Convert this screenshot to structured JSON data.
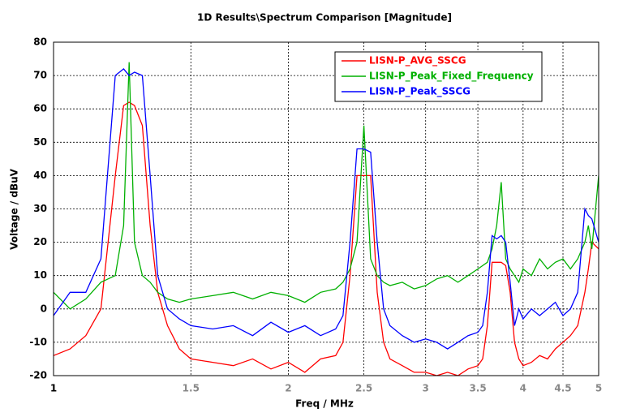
{
  "chart_data": {
    "type": "line",
    "title": "1D Results\\Spectrum Comparison [Magnitude]",
    "xlabel": "Freq / MHz",
    "ylabel": "Voltage / dBuV",
    "xscale": "log",
    "grid": true,
    "legend": "upper right",
    "xlim": [
      1,
      5
    ],
    "xticks": [
      1,
      1.5,
      2,
      2.5,
      3,
      3.5,
      4,
      4.5,
      5
    ],
    "ylim": [
      -20,
      80
    ],
    "yticks": [
      -20,
      -10,
      0,
      10,
      20,
      30,
      40,
      50,
      60,
      70,
      80
    ],
    "x": [
      1.0,
      1.05,
      1.1,
      1.15,
      1.2,
      1.23,
      1.25,
      1.27,
      1.3,
      1.33,
      1.36,
      1.4,
      1.45,
      1.5,
      1.6,
      1.7,
      1.8,
      1.9,
      2.0,
      2.1,
      2.2,
      2.3,
      2.35,
      2.4,
      2.45,
      2.5,
      2.55,
      2.6,
      2.65,
      2.7,
      2.8,
      2.9,
      3.0,
      3.1,
      3.2,
      3.3,
      3.4,
      3.5,
      3.55,
      3.6,
      3.65,
      3.7,
      3.75,
      3.8,
      3.85,
      3.9,
      3.95,
      4.0,
      4.1,
      4.2,
      4.3,
      4.4,
      4.5,
      4.6,
      4.7,
      4.8,
      4.85,
      4.9,
      5.0
    ],
    "series": [
      {
        "name": "LISN-P_AVG_SSCG",
        "color": "#ff0000",
        "values": [
          -14,
          -12,
          -8,
          0,
          40,
          61,
          62,
          61,
          55,
          25,
          5,
          -5,
          -12,
          -15,
          -16,
          -17,
          -15,
          -18,
          -16,
          -19,
          -15,
          -14,
          -10,
          10,
          40,
          40,
          40,
          5,
          -10,
          -15,
          -17,
          -19,
          -19,
          -20,
          -19,
          -20,
          -18,
          -17,
          -15,
          -5,
          14,
          14,
          14,
          13,
          5,
          -10,
          -15,
          -17,
          -16,
          -14,
          -15,
          -12,
          -10,
          -8,
          -5,
          5,
          12,
          20,
          18
        ]
      },
      {
        "name": "LISN-P_Peak_Fixed_Frequency",
        "color": "#00b000",
        "values": [
          5,
          0,
          3,
          8,
          10,
          25,
          74,
          20,
          10,
          8,
          5,
          3,
          2,
          3,
          4,
          5,
          3,
          5,
          4,
          2,
          5,
          6,
          8,
          12,
          20,
          55,
          15,
          10,
          8,
          7,
          8,
          6,
          7,
          9,
          10,
          8,
          10,
          12,
          13,
          14,
          18,
          25,
          38,
          15,
          12,
          10,
          8,
          12,
          10,
          15,
          12,
          14,
          15,
          12,
          15,
          20,
          25,
          18,
          40
        ]
      },
      {
        "name": "LISN-P_Peak_SSCG",
        "color": "#0000ff",
        "values": [
          -2,
          5,
          5,
          15,
          70,
          72,
          70,
          71,
          70,
          40,
          10,
          0,
          -3,
          -5,
          -6,
          -5,
          -8,
          -4,
          -7,
          -5,
          -8,
          -6,
          -2,
          20,
          48,
          48,
          47,
          20,
          0,
          -5,
          -8,
          -10,
          -9,
          -10,
          -12,
          -10,
          -8,
          -7,
          -5,
          5,
          22,
          21,
          22,
          20,
          8,
          -5,
          0,
          -3,
          0,
          -2,
          0,
          2,
          -2,
          0,
          5,
          30,
          28,
          27,
          20
        ]
      }
    ]
  }
}
